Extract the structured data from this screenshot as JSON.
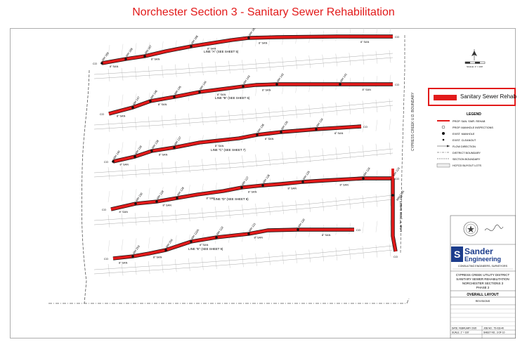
{
  "page_title": "Norchester Section 3 - Sanitary Sewer Rehabilitation",
  "callout": {
    "label": "Sanitary Sewer Rehab",
    "color": "#e21a1a"
  },
  "legend": {
    "title": "LEGEND",
    "items": [
      "PROP. SAN. SWR. REHAB",
      "PROP. MANHOLE INSPECTIONS",
      "EXIST. MANHOLE",
      "EXIST. CLEANOUT",
      "FLOW DIRECTION",
      "DISTRICT BOUNDARY",
      "SECTION BOUNDARY",
      "HCFCD BUYOUT LOTS"
    ]
  },
  "scale_label": "SCALE: 1\" = 100'",
  "boundary_label": "CYPRESS CREEK U.D. BOUNDARY",
  "lines": [
    {
      "label": "LINE \"A\" (SEE SHEET 5)",
      "manholes": [
        "MH 169",
        "MH 168",
        "MH 167",
        "MH 166",
        "MH 165"
      ]
    },
    {
      "label": "LINE \"B\" (SEE SHEET 6)",
      "manholes": [
        "MH 147",
        "MH 146",
        "MH 145",
        "MH 144",
        "MH 143",
        "MH 142",
        "MH 141"
      ]
    },
    {
      "label": "LINE \"C\" (SEE SHEET 7)",
      "manholes": [
        "MH 140",
        "MH 139",
        "MH 138",
        "MH 137",
        "MH 136",
        "MH 135",
        "MH 134"
      ]
    },
    {
      "label": "LINE \"D\" (SEE SHEET 8)",
      "manholes": [
        "MH 130",
        "MH 129",
        "MH 128",
        "MH 127",
        "MH 126",
        "MH 125",
        "MH 124",
        "MH 123"
      ]
    },
    {
      "label": "LINE \"E\" (SEE SHEET 9)",
      "manholes": [
        "MH 253",
        "MH 254",
        "MH 122A",
        "MH 122",
        "MH 121",
        "MH 120"
      ]
    },
    {
      "label": "LINE \"F\" (SEE SHEET 10)",
      "manholes": [
        "MH 123A"
      ]
    }
  ],
  "pipe_label": "8\" SAN",
  "cleanout_label": "CO",
  "company": {
    "name": "Sander",
    "name2": "Engineering",
    "tagline": "CONSULTING ENGINEERS, SURVEYORS"
  },
  "project": {
    "line1": "CYPRESS CREEK UTILITY DISTRICT",
    "line2": "SANITARY SEWER REHABILITATION",
    "line3": "NORCHESTER SECTIONS 3",
    "line4": "PHASE 2",
    "sheet_title": "OVERALL LAYOUT",
    "revisions": "REVISIONS",
    "date": "DATE: FEBRUARY 2020",
    "job": "JOB NO.: 75-033-40",
    "scale": "SCALE: 1\" = 100'",
    "sheet": "SHEET NO.: 3 OF 10"
  }
}
